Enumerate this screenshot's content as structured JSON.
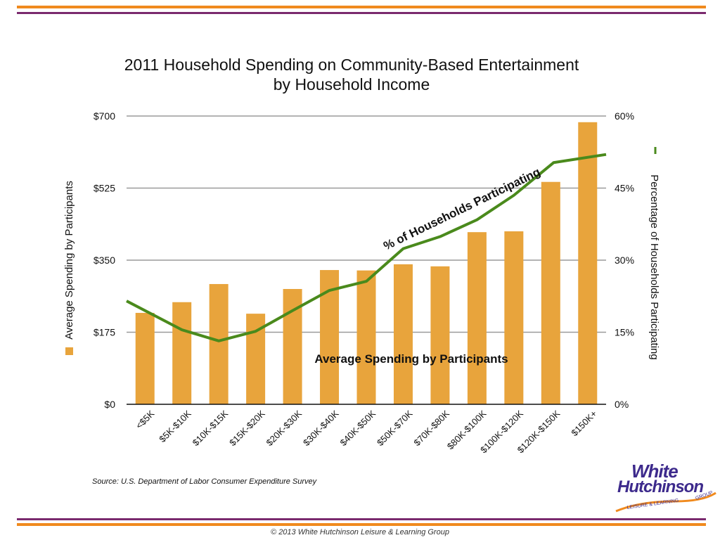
{
  "title_line1": "2011 Household Spending on Community-Based Entertainment",
  "title_line2": "by Household Income",
  "source": "Source: U.S. Department of Labor Consumer Expenditure Survey",
  "footer": "© 2013 White Hutchinson Leisure & Learning Group",
  "logo": {
    "line1": "White",
    "line2": "Hutchinson",
    "tagline": "LEISURE & LEARNING",
    "group": "GROUP"
  },
  "colors": {
    "bar": "#e8a43c",
    "line": "#4a8a1c",
    "rule_orange": "#f08a1e",
    "rule_purple": "#7a2a6e",
    "grid": "#9a9a9a"
  },
  "chart_data": {
    "type": "bar",
    "title": "2011 Household Spending on Community-Based Entertainment by Household Income",
    "categories": [
      "<$5K",
      "$5K-$10K",
      "$10K-$15K",
      "$15K-$20K",
      "$20K-$30K",
      "$30K-$40K",
      "$40K-$50K",
      "$50K-$70K",
      "$70K-$80K",
      "$80K-$100K",
      "$100K-$120K",
      "$120K-$150K",
      "$150K+"
    ],
    "ylabel": "Average Spending by Participants",
    "y2label": "Percentage of Households Participating",
    "ylim": [
      0,
      700
    ],
    "y2lim": [
      0,
      60
    ],
    "yticks": [
      "$0",
      "$175",
      "$350",
      "$525",
      "$700"
    ],
    "y2ticks": [
      "0%",
      "15%",
      "30%",
      "45%",
      "60%"
    ],
    "grid": true,
    "series": [
      {
        "name": "Average Spending by Participants",
        "type": "bar",
        "axis": "left",
        "values": [
          222,
          248,
          292,
          220,
          280,
          326,
          325,
          340,
          335,
          418,
          420,
          540,
          685
        ]
      },
      {
        "name": "% of Households Participating",
        "type": "line",
        "axis": "right",
        "values": [
          21.5,
          15.5,
          13.2,
          15.2,
          19.5,
          23.7,
          25.6,
          32.4,
          34.9,
          38.4,
          43.5,
          50.3,
          52.0
        ]
      }
    ],
    "annotations": [
      "% of Households Participating",
      "Average Spending by Participants"
    ]
  }
}
